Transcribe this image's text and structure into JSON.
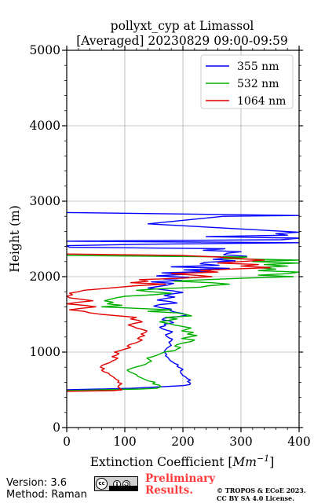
{
  "chart_data": {
    "type": "line",
    "title": [
      "pollyxt_cyp at Limassol",
      "[Averaged] 20230829 09:00-09:59"
    ],
    "xlabel": "Extinction Coefficient [Mm⁻¹]",
    "ylabel": "Height (m)",
    "xlim": [
      0,
      400
    ],
    "ylim": [
      0,
      5000
    ],
    "xticks": [
      0,
      100,
      200,
      300,
      400
    ],
    "yticks": [
      0,
      1000,
      2000,
      3000,
      4000,
      5000
    ],
    "grid": true,
    "legend_position": "top-right",
    "colors": {
      "355": "#0000ff",
      "532": "#00b000",
      "1064": "#e00000"
    },
    "series": [
      {
        "name": "355 nm",
        "color": "#0000ff",
        "points": [
          [
            0,
            500
          ],
          [
            110,
            520
          ],
          [
            160,
            540
          ],
          [
            200,
            555
          ],
          [
            212,
            570
          ],
          [
            213,
            590
          ],
          [
            208,
            610
          ],
          [
            213,
            630
          ],
          [
            207,
            650
          ],
          [
            205,
            670
          ],
          [
            200,
            690
          ],
          [
            198,
            710
          ],
          [
            196,
            730
          ],
          [
            196,
            750
          ],
          [
            200,
            770
          ],
          [
            196,
            790
          ],
          [
            190,
            810
          ],
          [
            192,
            830
          ],
          [
            186,
            850
          ],
          [
            182,
            870
          ],
          [
            178,
            890
          ],
          [
            176,
            910
          ],
          [
            174,
            930
          ],
          [
            170,
            950
          ],
          [
            172,
            970
          ],
          [
            169,
            990
          ],
          [
            168,
            1010
          ],
          [
            170,
            1030
          ],
          [
            172,
            1050
          ],
          [
            176,
            1070
          ],
          [
            180,
            1090
          ],
          [
            178,
            1110
          ],
          [
            176,
            1130
          ],
          [
            180,
            1150
          ],
          [
            182,
            1170
          ],
          [
            176,
            1190
          ],
          [
            172,
            1210
          ],
          [
            170,
            1230
          ],
          [
            178,
            1250
          ],
          [
            182,
            1270
          ],
          [
            172,
            1290
          ],
          [
            164,
            1310
          ],
          [
            160,
            1330
          ],
          [
            170,
            1350
          ],
          [
            168,
            1370
          ],
          [
            184,
            1390
          ],
          [
            178,
            1410
          ],
          [
            164,
            1430
          ],
          [
            168,
            1450
          ],
          [
            192,
            1470
          ],
          [
            206,
            1490
          ],
          [
            200,
            1510
          ],
          [
            186,
            1530
          ],
          [
            178,
            1550
          ],
          [
            180,
            1570
          ],
          [
            162,
            1590
          ],
          [
            150,
            1610
          ],
          [
            160,
            1630
          ],
          [
            190,
            1650
          ],
          [
            178,
            1670
          ],
          [
            156,
            1690
          ],
          [
            170,
            1710
          ],
          [
            186,
            1730
          ],
          [
            168,
            1750
          ],
          [
            180,
            1770
          ],
          [
            200,
            1790
          ],
          [
            184,
            1810
          ],
          [
            162,
            1830
          ],
          [
            140,
            1850
          ],
          [
            158,
            1870
          ],
          [
            174,
            1890
          ],
          [
            184,
            1910
          ],
          [
            146,
            1930
          ],
          [
            198,
            1950
          ],
          [
            166,
            1970
          ],
          [
            210,
            1990
          ],
          [
            155,
            2010
          ],
          [
            202,
            2030
          ],
          [
            164,
            2050
          ],
          [
            248,
            2070
          ],
          [
            202,
            2090
          ],
          [
            280,
            2110
          ],
          [
            180,
            2130
          ],
          [
            262,
            2150
          ],
          [
            230,
            2170
          ],
          [
            238,
            2190
          ],
          [
            290,
            2210
          ],
          [
            252,
            2230
          ],
          [
            282,
            2250
          ],
          [
            310,
            2270
          ],
          [
            270,
            2290
          ],
          [
            276,
            2310
          ],
          [
            300,
            2330
          ],
          [
            235,
            2350
          ],
          [
            272,
            2370
          ],
          [
            5,
            2390
          ],
          [
            0,
            2410
          ],
          [
            140,
            2430
          ],
          [
            400,
            2450
          ],
          [
            0,
            2470
          ],
          [
            370,
            2490
          ],
          [
            400,
            2510
          ],
          [
            240,
            2530
          ],
          [
            380,
            2550
          ],
          [
            360,
            2570
          ],
          [
            400,
            2590
          ],
          [
            140,
            2700
          ],
          [
            270,
            2800
          ],
          [
            400,
            2810
          ],
          [
            0,
            2850
          ]
        ]
      },
      {
        "name": "532 nm",
        "color": "#00b000",
        "points": [
          [
            0,
            490
          ],
          [
            60,
            500
          ],
          [
            125,
            510
          ],
          [
            155,
            520
          ],
          [
            162,
            540
          ],
          [
            160,
            560
          ],
          [
            148,
            580
          ],
          [
            152,
            600
          ],
          [
            140,
            620
          ],
          [
            134,
            640
          ],
          [
            128,
            660
          ],
          [
            122,
            680
          ],
          [
            120,
            700
          ],
          [
            114,
            720
          ],
          [
            108,
            740
          ],
          [
            104,
            760
          ],
          [
            110,
            780
          ],
          [
            118,
            800
          ],
          [
            128,
            820
          ],
          [
            136,
            840
          ],
          [
            140,
            860
          ],
          [
            146,
            880
          ],
          [
            142,
            900
          ],
          [
            138,
            920
          ],
          [
            148,
            940
          ],
          [
            156,
            960
          ],
          [
            162,
            980
          ],
          [
            168,
            1000
          ],
          [
            186,
            1020
          ],
          [
            190,
            1040
          ],
          [
            196,
            1060
          ],
          [
            186,
            1080
          ],
          [
            190,
            1100
          ],
          [
            200,
            1120
          ],
          [
            214,
            1140
          ],
          [
            220,
            1160
          ],
          [
            198,
            1180
          ],
          [
            210,
            1200
          ],
          [
            224,
            1220
          ],
          [
            208,
            1240
          ],
          [
            218,
            1260
          ],
          [
            198,
            1280
          ],
          [
            206,
            1300
          ],
          [
            214,
            1320
          ],
          [
            200,
            1340
          ],
          [
            185,
            1360
          ],
          [
            175,
            1380
          ],
          [
            160,
            1400
          ],
          [
            175,
            1420
          ],
          [
            190,
            1440
          ],
          [
            170,
            1460
          ],
          [
            215,
            1480
          ],
          [
            205,
            1500
          ],
          [
            190,
            1520
          ],
          [
            140,
            1540
          ],
          [
            180,
            1560
          ],
          [
            120,
            1580
          ],
          [
            60,
            1600
          ],
          [
            95,
            1620
          ],
          [
            70,
            1640
          ],
          [
            80,
            1660
          ],
          [
            65,
            1680
          ],
          [
            75,
            1700
          ],
          [
            85,
            1720
          ],
          [
            100,
            1740
          ],
          [
            150,
            1760
          ],
          [
            180,
            1780
          ],
          [
            145,
            1800
          ],
          [
            120,
            1820
          ],
          [
            160,
            1840
          ],
          [
            230,
            1860
          ],
          [
            245,
            1880
          ],
          [
            280,
            1900
          ],
          [
            250,
            1920
          ],
          [
            185,
            1940
          ],
          [
            240,
            1960
          ],
          [
            305,
            1980
          ],
          [
            390,
            2000
          ],
          [
            330,
            2020
          ],
          [
            380,
            2040
          ],
          [
            400,
            2060
          ],
          [
            330,
            2080
          ],
          [
            360,
            2100
          ],
          [
            330,
            2120
          ],
          [
            380,
            2140
          ],
          [
            340,
            2160
          ],
          [
            400,
            2180
          ],
          [
            320,
            2200
          ],
          [
            400,
            2220
          ],
          [
            270,
            2240
          ],
          [
            310,
            2260
          ],
          [
            0,
            2280
          ]
        ]
      },
      {
        "name": "1064 nm",
        "color": "#e00000",
        "points": [
          [
            0,
            480
          ],
          [
            80,
            490
          ],
          [
            95,
            500
          ],
          [
            92,
            520
          ],
          [
            88,
            540
          ],
          [
            90,
            560
          ],
          [
            95,
            580
          ],
          [
            88,
            600
          ],
          [
            90,
            620
          ],
          [
            85,
            640
          ],
          [
            82,
            660
          ],
          [
            78,
            680
          ],
          [
            74,
            700
          ],
          [
            72,
            720
          ],
          [
            64,
            740
          ],
          [
            60,
            760
          ],
          [
            65,
            780
          ],
          [
            58,
            800
          ],
          [
            60,
            820
          ],
          [
            66,
            840
          ],
          [
            74,
            860
          ],
          [
            78,
            880
          ],
          [
            84,
            900
          ],
          [
            88,
            920
          ],
          [
            78,
            940
          ],
          [
            86,
            960
          ],
          [
            90,
            980
          ],
          [
            82,
            1000
          ],
          [
            92,
            1020
          ],
          [
            100,
            1040
          ],
          [
            110,
            1060
          ],
          [
            104,
            1080
          ],
          [
            108,
            1100
          ],
          [
            118,
            1120
          ],
          [
            124,
            1140
          ],
          [
            130,
            1160
          ],
          [
            122,
            1180
          ],
          [
            126,
            1200
          ],
          [
            134,
            1220
          ],
          [
            128,
            1240
          ],
          [
            136,
            1260
          ],
          [
            138,
            1280
          ],
          [
            130,
            1300
          ],
          [
            120,
            1320
          ],
          [
            114,
            1340
          ],
          [
            106,
            1360
          ],
          [
            116,
            1380
          ],
          [
            130,
            1400
          ],
          [
            124,
            1420
          ],
          [
            110,
            1440
          ],
          [
            120,
            1460
          ],
          [
            90,
            1480
          ],
          [
            60,
            1500
          ],
          [
            40,
            1520
          ],
          [
            30,
            1540
          ],
          [
            5,
            1560
          ],
          [
            25,
            1580
          ],
          [
            50,
            1600
          ],
          [
            30,
            1620
          ],
          [
            0,
            1640
          ],
          [
            20,
            1660
          ],
          [
            45,
            1680
          ],
          [
            25,
            1700
          ],
          [
            5,
            1720
          ],
          [
            0,
            1740
          ],
          [
            10,
            1760
          ],
          [
            5,
            1780
          ],
          [
            20,
            1800
          ],
          [
            30,
            1820
          ],
          [
            60,
            1840
          ],
          [
            90,
            1860
          ],
          [
            120,
            1880
          ],
          [
            170,
            1900
          ],
          [
            110,
            1920
          ],
          [
            140,
            1940
          ],
          [
            125,
            1960
          ],
          [
            200,
            1980
          ],
          [
            250,
            2000
          ],
          [
            220,
            2020
          ],
          [
            180,
            2040
          ],
          [
            260,
            2060
          ],
          [
            230,
            2080
          ],
          [
            280,
            2100
          ],
          [
            350,
            2120
          ],
          [
            300,
            2140
          ],
          [
            330,
            2160
          ],
          [
            260,
            2180
          ],
          [
            300,
            2200
          ],
          [
            340,
            2220
          ],
          [
            300,
            2240
          ],
          [
            260,
            2260
          ],
          [
            200,
            2280
          ],
          [
            0,
            2300
          ]
        ]
      }
    ]
  },
  "footer": {
    "version": "Version: 3.6",
    "method": "Method: Raman",
    "preliminary_line1": "Preliminary",
    "preliminary_line2": "Results.",
    "license_line1": "© TROPOS & ECoE 2023.",
    "license_line2": "CC BY SA 4.0 License.",
    "cc_badge_text": "cc",
    "cc_badge_icon": "cc-by-sa-badge-icon"
  }
}
